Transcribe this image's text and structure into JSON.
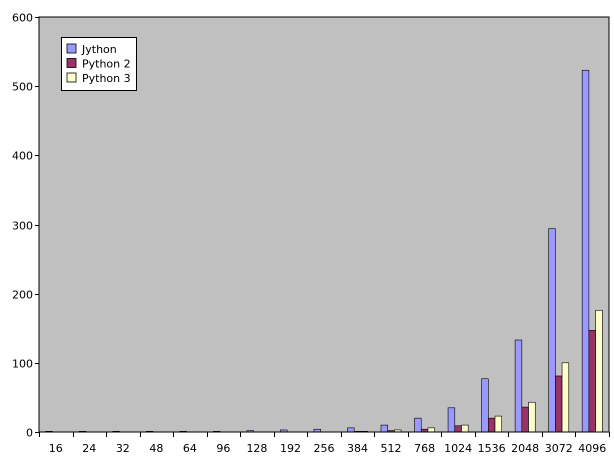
{
  "chart_data": {
    "type": "bar",
    "title": "",
    "xlabel": "",
    "ylabel": "",
    "ylim": [
      0,
      600
    ],
    "yticks": [
      0,
      100,
      200,
      300,
      400,
      500,
      600
    ],
    "grid": false,
    "legend_position": "top-left",
    "plot_background": "#c0c0c0",
    "categories": [
      "16",
      "24",
      "32",
      "48",
      "64",
      "96",
      "128",
      "192",
      "256",
      "384",
      "512",
      "768",
      "1024",
      "1536",
      "2048",
      "3072",
      "4096"
    ],
    "series": [
      {
        "name": "Jython",
        "color": "#9999ff",
        "values": [
          1,
          1,
          1,
          1,
          1,
          1,
          2,
          3,
          4,
          6,
          10,
          20,
          35,
          77,
          133,
          294,
          523
        ]
      },
      {
        "name": "Python 2",
        "color": "#993366",
        "values": [
          0,
          0,
          0,
          0,
          0,
          0,
          0,
          0,
          0,
          1,
          2,
          4,
          9,
          20,
          36,
          81,
          147
        ]
      },
      {
        "name": "Python 3",
        "color": "#ffffcc",
        "values": [
          0,
          0,
          0,
          0,
          0,
          0,
          0,
          0,
          0,
          1,
          3,
          6,
          10,
          23,
          43,
          100,
          176
        ]
      }
    ]
  }
}
